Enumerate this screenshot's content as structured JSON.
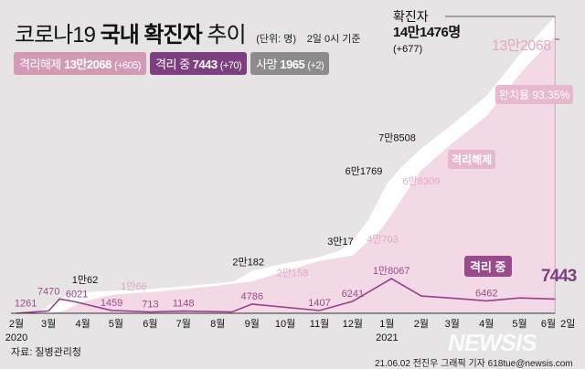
{
  "header": {
    "title_light": "코로나19",
    "title_bold": "국내 확진자",
    "title_end": "추이",
    "unit": "(단위: 명)",
    "basis": "2일 0시 기준"
  },
  "legend": [
    {
      "label": "격리해제",
      "value": "13만2068",
      "change": "(+605)",
      "color": "#d39ab7"
    },
    {
      "label": "격리 중",
      "value": "7443",
      "change": "(+70)",
      "color": "#7e3f80"
    },
    {
      "label": "사망",
      "value": "1965",
      "change": "(+2)",
      "color": "#8d8b8c"
    }
  ],
  "total": {
    "label": "확진자",
    "value": "14만1476명",
    "change": "(+677)"
  },
  "released_total_label": "13만2068",
  "recovery_rate": "완치율 93.35%",
  "released_tag": "격리해제",
  "isolation_tag": "격리 중",
  "isolation_last": "7443",
  "source": "자료: 질병관리청",
  "credit": "21.06.02 전진우 그래픽 기자 618tue@newsis.com",
  "watermark": "NEWSIS",
  "colors": {
    "released": "#f3d8e5",
    "confirmed": "#ffffff",
    "isolation": "#9b3d8c",
    "released_label": "#e0a9c6"
  },
  "chart_data": {
    "type": "area",
    "x_ticks": [
      {
        "date": "2020-02-01",
        "label": "2월",
        "year": "2020"
      },
      {
        "date": "2020-03-01",
        "label": "3월"
      },
      {
        "date": "2020-04-01",
        "label": "4월"
      },
      {
        "date": "2020-05-01",
        "label": "5월"
      },
      {
        "date": "2020-06-01",
        "label": "6월"
      },
      {
        "date": "2020-07-01",
        "label": "7월"
      },
      {
        "date": "2020-08-01",
        "label": "8월"
      },
      {
        "date": "2020-09-01",
        "label": "9월"
      },
      {
        "date": "2020-10-01",
        "label": "10월"
      },
      {
        "date": "2020-11-01",
        "label": "11월"
      },
      {
        "date": "2020-12-01",
        "label": "12월"
      },
      {
        "date": "2021-01-01",
        "label": "1월",
        "year": "2021"
      },
      {
        "date": "2021-02-01",
        "label": "2월"
      },
      {
        "date": "2021-03-01",
        "label": "3월"
      },
      {
        "date": "2021-04-01",
        "label": "4월"
      },
      {
        "date": "2021-05-01",
        "label": "5월"
      },
      {
        "date": "2021-06-01",
        "label": "6월"
      },
      {
        "date": "2021-06-02",
        "label": "2일"
      }
    ],
    "series": [
      {
        "name": "확진자",
        "points": [
          [
            "2020-02-01",
            12
          ],
          [
            "2020-02-20",
            104
          ],
          [
            "2020-03-01",
            3736
          ],
          [
            "2020-03-15",
            8162
          ],
          [
            "2020-04-03",
            10062
          ],
          [
            "2020-05-01",
            10774
          ],
          [
            "2020-06-01",
            11541
          ],
          [
            "2020-07-01",
            12850
          ],
          [
            "2020-08-01",
            14336
          ],
          [
            "2020-08-15",
            15039
          ],
          [
            "2020-09-01",
            20182
          ],
          [
            "2020-10-01",
            23889
          ],
          [
            "2020-11-01",
            26732
          ],
          [
            "2020-11-20",
            30017
          ],
          [
            "2020-12-01",
            34652
          ],
          [
            "2020-12-15",
            44364
          ],
          [
            "2021-01-01",
            61769
          ],
          [
            "2021-01-15",
            70212
          ],
          [
            "2021-02-01",
            78508
          ],
          [
            "2021-03-01",
            90029
          ],
          [
            "2021-04-01",
            103639
          ],
          [
            "2021-05-01",
            123240
          ],
          [
            "2021-06-02",
            141476
          ]
        ]
      },
      {
        "name": "격리해제",
        "points": [
          [
            "2020-02-01",
            0
          ],
          [
            "2020-03-01",
            30
          ],
          [
            "2020-03-15",
            1137
          ],
          [
            "2020-04-01",
            5567
          ],
          [
            "2020-04-20",
            8000
          ],
          [
            "2020-05-01",
            9072
          ],
          [
            "2020-06-01",
            10066
          ],
          [
            "2020-07-01",
            11537
          ],
          [
            "2020-08-01",
            13183
          ],
          [
            "2020-09-01",
            15198
          ],
          [
            "2020-10-01",
            20158
          ],
          [
            "2020-11-01",
            24910
          ],
          [
            "2020-12-01",
            27540
          ],
          [
            "2020-12-28",
            40703
          ],
          [
            "2021-02-01",
            68309
          ],
          [
            "2021-03-01",
            81000
          ],
          [
            "2021-04-01",
            94000
          ],
          [
            "2021-05-01",
            114000
          ],
          [
            "2021-06-02",
            132068
          ]
        ]
      },
      {
        "name": "격리 중",
        "points": [
          [
            "2020-02-01",
            12
          ],
          [
            "2020-03-01",
            1261
          ],
          [
            "2020-03-11",
            7470
          ],
          [
            "2020-03-25",
            6021
          ],
          [
            "2020-04-27",
            1459
          ],
          [
            "2020-06-01",
            713
          ],
          [
            "2020-07-01",
            1148
          ],
          [
            "2020-08-14",
            700
          ],
          [
            "2020-09-01",
            4786
          ],
          [
            "2020-11-01",
            1407
          ],
          [
            "2020-12-01",
            6241
          ],
          [
            "2021-01-05",
            18067
          ],
          [
            "2021-02-01",
            9000
          ],
          [
            "2021-03-01",
            7900
          ],
          [
            "2021-04-01",
            6462
          ],
          [
            "2021-05-01",
            8000
          ],
          [
            "2021-06-02",
            7443
          ]
        ]
      }
    ],
    "annotations": [
      {
        "series": "확진자",
        "date": "2020-04-03",
        "text": "1만62"
      },
      {
        "series": "확진자",
        "date": "2020-09-01",
        "text": "2만182"
      },
      {
        "series": "확진자",
        "date": "2020-11-20",
        "text": "3만17"
      },
      {
        "series": "확진자",
        "date": "2021-01-01",
        "text": "6만1769"
      },
      {
        "series": "확진자",
        "date": "2021-02-01",
        "text": "7만8508"
      },
      {
        "series": "격리해제",
        "date": "2020-06-01",
        "text": "1만66"
      },
      {
        "series": "격리해제",
        "date": "2020-10-01",
        "text": "2만158"
      },
      {
        "series": "격리해제",
        "date": "2020-12-28",
        "text": "4만703"
      },
      {
        "series": "격리해제",
        "date": "2021-02-01",
        "text": "6만8309"
      },
      {
        "series": "격리 중",
        "date": "2020-03-01",
        "text": "1261"
      },
      {
        "series": "격리 중",
        "date": "2020-03-11",
        "text": "7470"
      },
      {
        "series": "격리 중",
        "date": "2020-03-25",
        "text": "6021"
      },
      {
        "series": "격리 중",
        "date": "2020-04-27",
        "text": "1459"
      },
      {
        "series": "격리 중",
        "date": "2020-06-01",
        "text": "713"
      },
      {
        "series": "격리 중",
        "date": "2020-07-01",
        "text": "1148"
      },
      {
        "series": "격리 중",
        "date": "2020-09-01",
        "text": "4786"
      },
      {
        "series": "격리 중",
        "date": "2020-11-01",
        "text": "1407"
      },
      {
        "series": "격리 중",
        "date": "2020-12-01",
        "text": "6241"
      },
      {
        "series": "격리 중",
        "date": "2021-01-05",
        "text": "1만8067"
      },
      {
        "series": "격리 중",
        "date": "2021-04-01",
        "text": "6462"
      }
    ]
  }
}
